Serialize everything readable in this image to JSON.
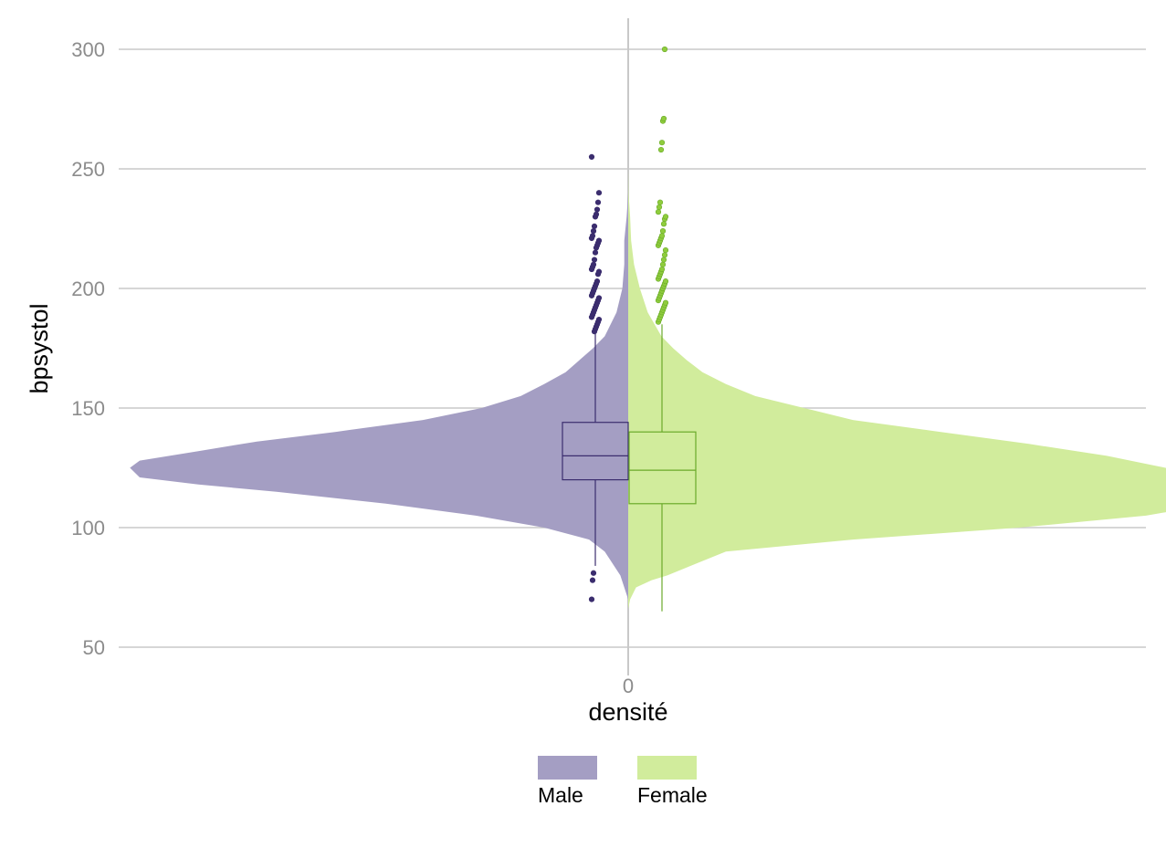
{
  "chart_data": {
    "type": "violin",
    "xlabel": "densité",
    "ylabel": "bpsystol",
    "x_ticks": [
      "0"
    ],
    "y_ticks": [
      50,
      100,
      150,
      200,
      250,
      300
    ],
    "ylim": [
      50,
      300
    ],
    "grid": "horizontal",
    "legend": {
      "position": "bottom",
      "title": ""
    },
    "series": [
      {
        "name": "Male",
        "side": "left",
        "fill": "#a49ec3",
        "line": "#3b2d6e",
        "density": [
          [
            70,
            0.0
          ],
          [
            75,
            0.002
          ],
          [
            80,
            0.004
          ],
          [
            90,
            0.012
          ],
          [
            95,
            0.02
          ],
          [
            100,
            0.043
          ],
          [
            105,
            0.078
          ],
          [
            110,
            0.124
          ],
          [
            115,
            0.18
          ],
          [
            118,
            0.22
          ],
          [
            121,
            0.25
          ],
          [
            125,
            0.255
          ],
          [
            128,
            0.25
          ],
          [
            132,
            0.22
          ],
          [
            136,
            0.19
          ],
          [
            140,
            0.15
          ],
          [
            145,
            0.105
          ],
          [
            150,
            0.075
          ],
          [
            155,
            0.055
          ],
          [
            160,
            0.043
          ],
          [
            165,
            0.032
          ],
          [
            170,
            0.025
          ],
          [
            175,
            0.018
          ],
          [
            180,
            0.012
          ],
          [
            190,
            0.006
          ],
          [
            200,
            0.003
          ],
          [
            210,
            0.002
          ],
          [
            220,
            0.002
          ],
          [
            230,
            0.0008
          ],
          [
            240,
            0.0
          ]
        ],
        "box": {
          "min": 84,
          "q1": 120,
          "median": 130,
          "q3": 144,
          "max": 181
        },
        "outliers": [
          70,
          78,
          81,
          182,
          183,
          184,
          185,
          186,
          187,
          188,
          189,
          190,
          191,
          192,
          193,
          194,
          195,
          196,
          197,
          198,
          199,
          200,
          201,
          202,
          203,
          206,
          207,
          208,
          209,
          210,
          212,
          215,
          217,
          218,
          219,
          220,
          221,
          222,
          224,
          226,
          230,
          231,
          233,
          236,
          240,
          255
        ]
      },
      {
        "name": "Female",
        "side": "right",
        "fill": "#d1ec9c",
        "line": "#6aaa2a",
        "density": [
          [
            66,
            0.0
          ],
          [
            70,
            0.001
          ],
          [
            75,
            0.004
          ],
          [
            78,
            0.012
          ],
          [
            80,
            0.02
          ],
          [
            85,
            0.035
          ],
          [
            90,
            0.05
          ],
          [
            95,
            0.115
          ],
          [
            100,
            0.2
          ],
          [
            105,
            0.265
          ],
          [
            110,
            0.3
          ],
          [
            113,
            0.305
          ],
          [
            115,
            0.31
          ],
          [
            118,
            0.305
          ],
          [
            120,
            0.3
          ],
          [
            125,
            0.275
          ],
          [
            130,
            0.245
          ],
          [
            135,
            0.205
          ],
          [
            140,
            0.16
          ],
          [
            145,
            0.115
          ],
          [
            150,
            0.09
          ],
          [
            155,
            0.065
          ],
          [
            160,
            0.05
          ],
          [
            165,
            0.038
          ],
          [
            170,
            0.03
          ],
          [
            175,
            0.023
          ],
          [
            180,
            0.017
          ],
          [
            190,
            0.01
          ],
          [
            200,
            0.006
          ],
          [
            210,
            0.003
          ],
          [
            220,
            0.0015
          ],
          [
            230,
            0.001
          ],
          [
            240,
            0.0002
          ],
          [
            250,
            0.0
          ]
        ],
        "box": {
          "min": 65,
          "q1": 110,
          "median": 124,
          "q3": 140,
          "max": 185
        },
        "outliers": [
          186,
          187,
          188,
          189,
          190,
          191,
          192,
          193,
          194,
          195,
          196,
          197,
          198,
          199,
          200,
          201,
          202,
          203,
          204,
          205,
          206,
          207,
          208,
          210,
          212,
          214,
          216,
          218,
          219,
          220,
          221,
          222,
          224,
          227,
          229,
          230,
          232,
          234,
          236,
          258,
          261,
          270,
          271,
          300
        ]
      }
    ]
  }
}
